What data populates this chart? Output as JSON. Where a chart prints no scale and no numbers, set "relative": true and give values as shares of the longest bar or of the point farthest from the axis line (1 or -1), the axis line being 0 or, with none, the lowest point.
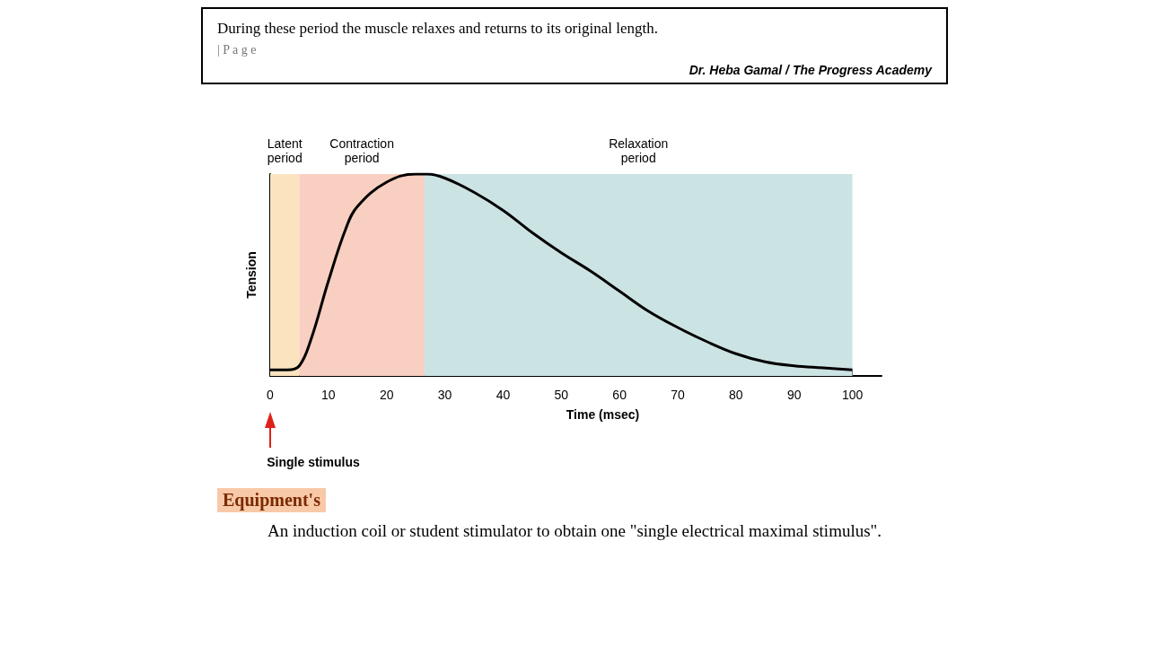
{
  "chart_data": {
    "type": "line",
    "relative": true,
    "xlabel": "Time (msec)",
    "ylabel": "Tension",
    "xlim": [
      0,
      105
    ],
    "xticks": [
      0,
      10,
      20,
      30,
      40,
      50,
      60,
      70,
      80,
      90,
      100
    ],
    "tick_labels": "x",
    "grid": false,
    "marker": "none",
    "line_style": "solid",
    "series": [
      {
        "color": "#000000",
        "x": [
          0,
          3,
          5,
          7,
          10,
          13,
          15,
          20,
          25,
          27,
          30,
          35,
          40,
          45,
          50,
          55,
          60,
          65,
          70,
          75,
          80,
          85,
          90,
          95,
          100
        ],
        "values": [
          0.03,
          0.03,
          0.05,
          0.18,
          0.47,
          0.73,
          0.84,
          0.96,
          1.0,
          1.0,
          0.98,
          0.91,
          0.82,
          0.71,
          0.61,
          0.52,
          0.42,
          0.32,
          0.24,
          0.17,
          0.11,
          0.07,
          0.05,
          0.04,
          0.03
        ]
      }
    ],
    "bands": [
      {
        "axis": "x",
        "from": 0,
        "to": 5,
        "label": "Latent\nperiod",
        "color": "#fbe3c0"
      },
      {
        "axis": "x",
        "from": 5,
        "to": 26.5,
        "label": "Contraction\nperiod",
        "color": "#f8cfc0"
      },
      {
        "axis": "x",
        "from": 26.5,
        "to": 100,
        "label": "Relaxation\nperiod",
        "color": "#cce3e3"
      }
    ],
    "annotations": [
      "During these period the muscle relaxes and returns to its original length.",
      "| P a g e",
      "Dr. Heba Gamal / The Progress Academy",
      "Single stimulus",
      "Equipment's",
      "An induction coil or student stimulator to obtain one \"single electrical maximal stimulus\"."
    ]
  }
}
